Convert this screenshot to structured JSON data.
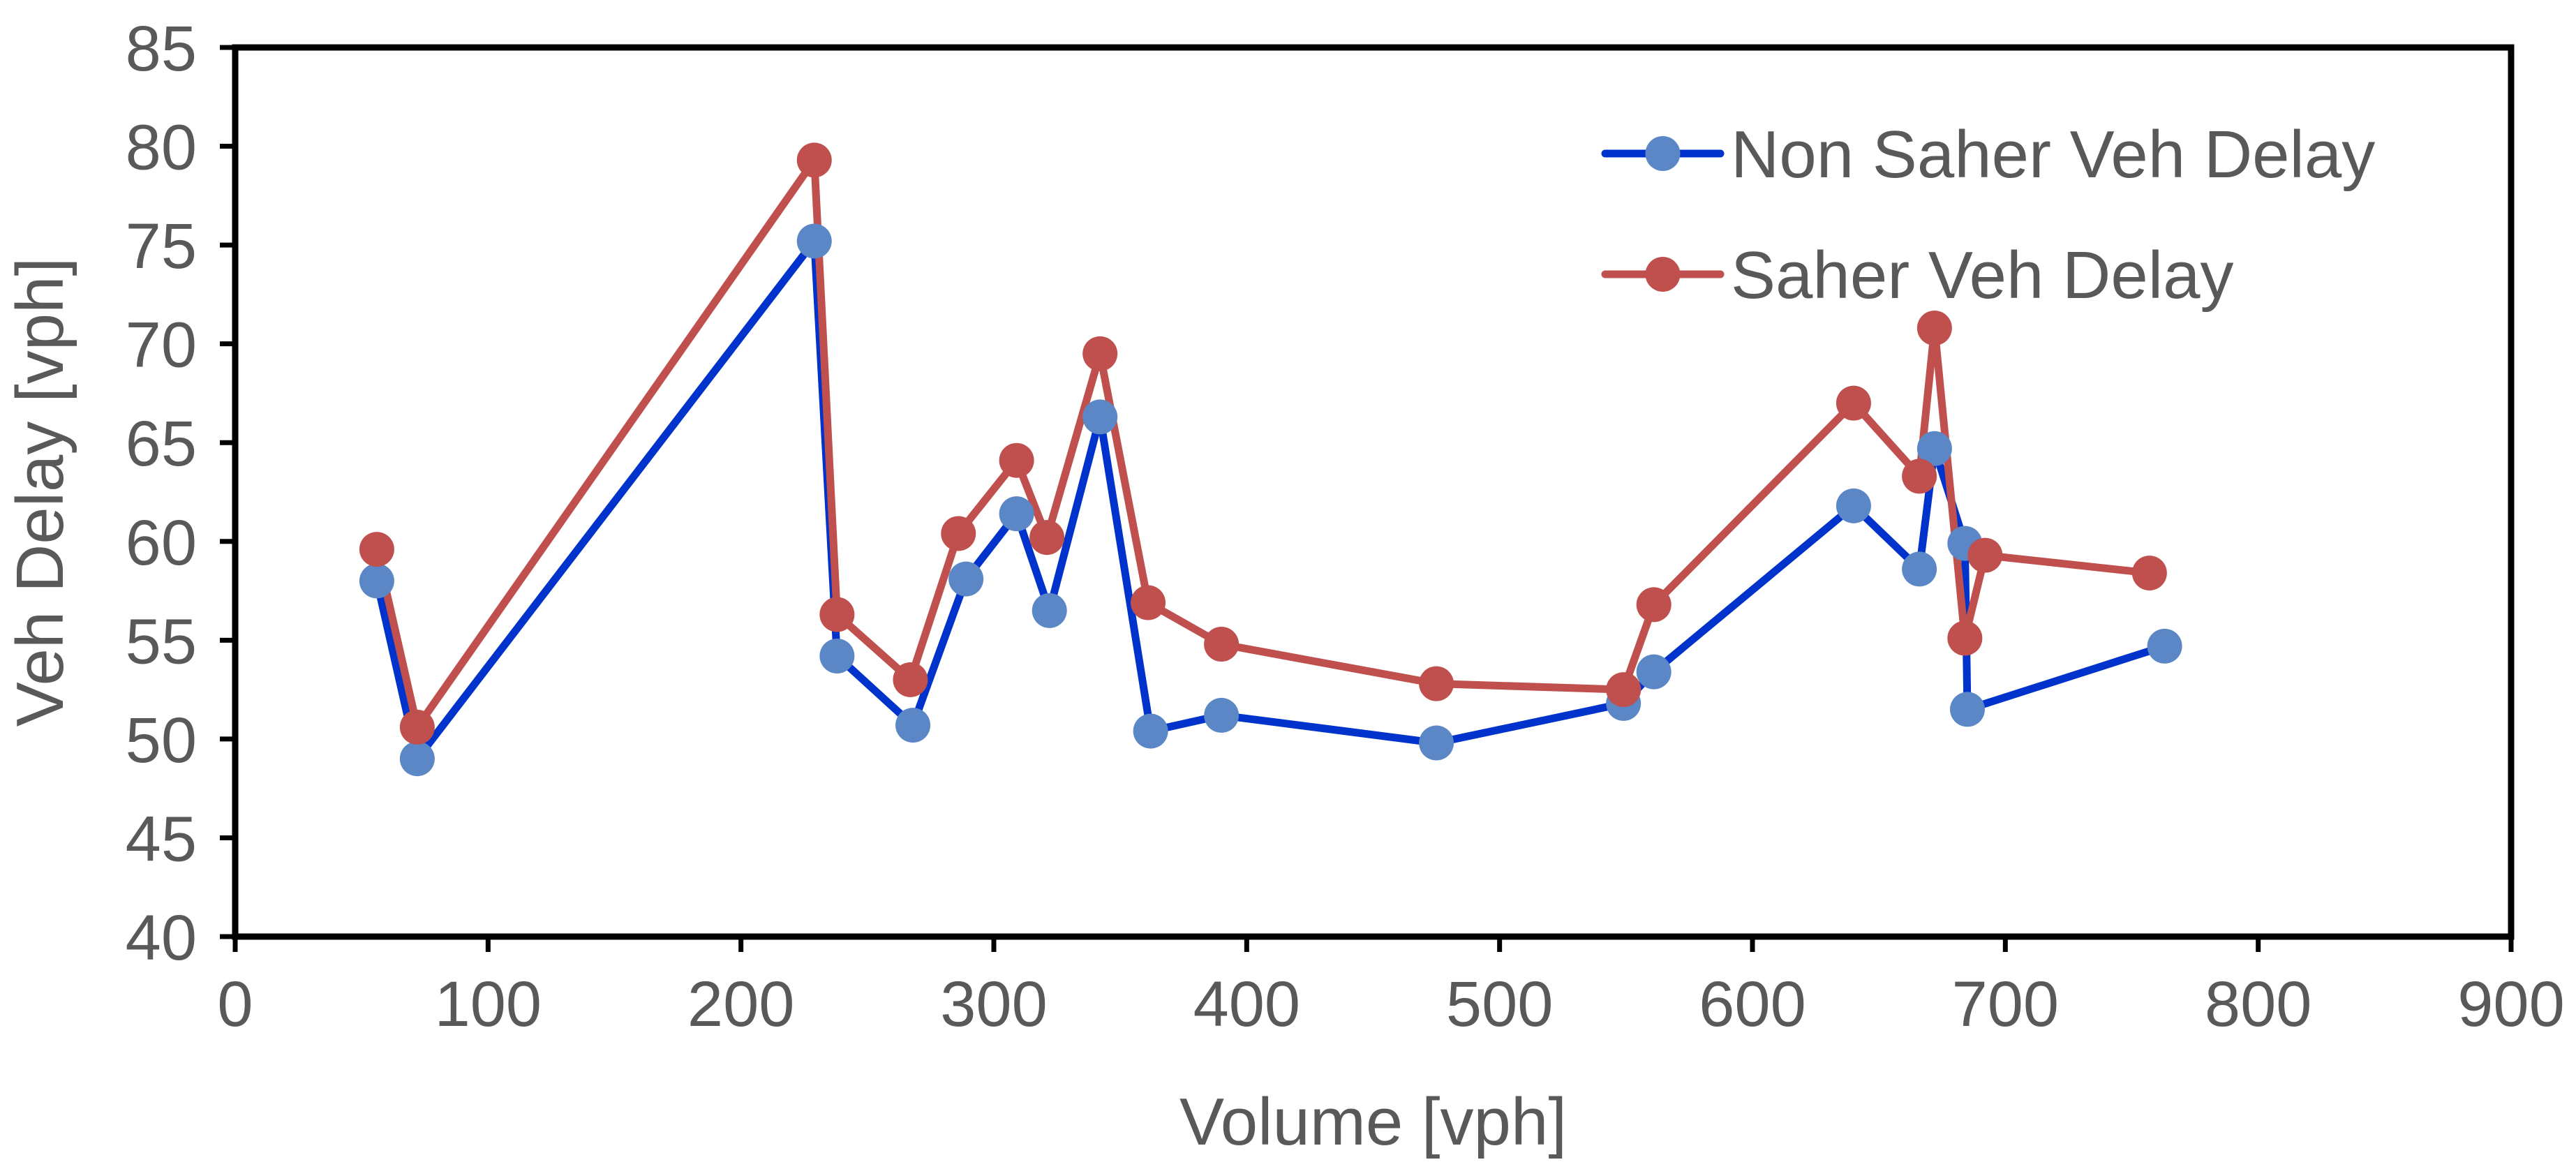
{
  "chart_data": {
    "type": "line",
    "title": "",
    "xlabel": "Volume [vph]",
    "ylabel": "Veh Delay [vph]",
    "xlim": [
      0,
      900
    ],
    "ylim": [
      40,
      85
    ],
    "xticks": [
      0,
      100,
      200,
      300,
      400,
      500,
      600,
      700,
      800,
      900
    ],
    "yticks": [
      40,
      45,
      50,
      55,
      60,
      65,
      70,
      75,
      80,
      85
    ],
    "grid": false,
    "legend_position": "top-right",
    "colors": {
      "axis": "#000000",
      "text": "#595959"
    },
    "series": [
      {
        "name": "Non Saher Veh Delay",
        "line_color": "#0033cc",
        "marker_color": "#5b87c7",
        "x": [
          56,
          72,
          229,
          238,
          268,
          289,
          309,
          322,
          342,
          362,
          390,
          475,
          549,
          561,
          640,
          666,
          672,
          684,
          685,
          763
        ],
        "y": [
          58.0,
          49.0,
          75.2,
          54.2,
          50.7,
          58.1,
          61.4,
          56.5,
          66.3,
          50.4,
          51.2,
          49.8,
          51.8,
          53.4,
          61.8,
          58.6,
          64.7,
          59.9,
          51.5,
          54.7
        ]
      },
      {
        "name": "Saher Veh Delay",
        "line_color": "#c0504d",
        "marker_color": "#c0504d",
        "x": [
          56,
          72,
          229,
          238,
          267,
          286,
          309,
          321,
          342,
          361,
          390,
          475,
          549,
          561,
          640,
          666,
          672,
          684,
          692,
          757
        ],
        "y": [
          59.6,
          50.6,
          79.3,
          56.3,
          53.0,
          60.4,
          64.1,
          60.2,
          69.5,
          56.9,
          54.8,
          52.8,
          52.5,
          56.8,
          67.0,
          63.3,
          70.8,
          55.1,
          59.3,
          58.4
        ]
      }
    ]
  }
}
